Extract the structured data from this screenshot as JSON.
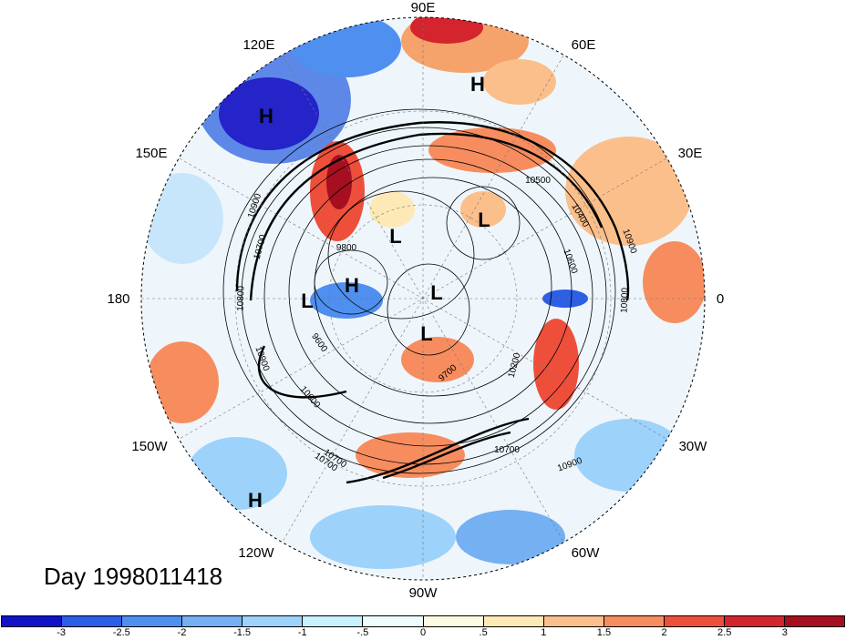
{
  "map": {
    "projection": "polar stereographic (north pole)",
    "longitude_labels": [
      "90E",
      "60E",
      "30E",
      "0",
      "30W",
      "60W",
      "90W",
      "120W",
      "150W",
      "180",
      "150E",
      "120E"
    ],
    "pressure_markers": [
      "H",
      "H",
      "L",
      "L",
      "H",
      "L",
      "L",
      "L",
      "H"
    ],
    "contour_labels": [
      "10900",
      "10700",
      "9800",
      "9600",
      "10800",
      "10900",
      "10600",
      "10700",
      "9700",
      "10600",
      "10500",
      "10400",
      "10900",
      "10800",
      "10200",
      "10700",
      "10900",
      "10700"
    ],
    "colors": {
      "deep_blue": "#1f1fd6",
      "light_blue": "#a8d4f5",
      "pale_yellow": "#fff7cf",
      "orange": "#f5a36a",
      "dark_red": "#a50f20"
    }
  },
  "title": {
    "day": "Day 1998011418"
  },
  "colorbar": {
    "colors": [
      "#1212c8",
      "#2c5ee6",
      "#4f8ff0",
      "#74b0f2",
      "#9dd2fa",
      "#c8f0fd",
      "#eefcfd",
      "#fdfbe4",
      "#fde9b6",
      "#fbbf8b",
      "#f78d5f",
      "#ee4f3b",
      "#d4242e",
      "#a50f20"
    ],
    "tick_labels": [
      "-3",
      "-2.5",
      "-2",
      "-1.5",
      "-1",
      "-.5",
      "0",
      ".5",
      "1",
      "1.5",
      "2",
      "2.5",
      "3"
    ]
  }
}
